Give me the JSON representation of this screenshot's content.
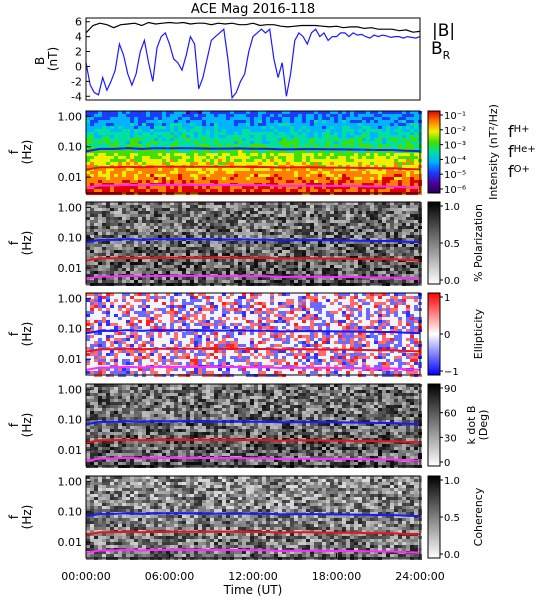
{
  "title": "ACE Mag 2016-118",
  "colors": {
    "total": "#000000",
    "radial": "#1a1aff",
    "hplus": "#1a1aff",
    "heplus": "#e8141e",
    "oplus": "#ff2bff"
  },
  "chart_data": [
    {
      "type": "line",
      "ylabel_line1": "B",
      "ylabel_line2": "(nT)",
      "ylim": [
        -4.5,
        6.5
      ],
      "yticks": [
        -4,
        -2,
        0,
        2,
        4,
        6
      ],
      "xlim": [
        0,
        24
      ],
      "legend": [
        {
          "name": "|B|",
          "color": "#000000"
        },
        {
          "name": "B",
          "sub": "R",
          "color": "#1a1aff"
        }
      ],
      "series": [
        {
          "name": "|B|",
          "x": [
            0,
            0.5,
            1,
            1.5,
            2,
            2.5,
            3,
            3.5,
            4,
            4.5,
            5,
            5.5,
            6,
            6.5,
            7,
            7.5,
            8,
            8.5,
            9,
            9.5,
            10,
            10.5,
            11,
            11.5,
            12,
            12.5,
            13,
            13.5,
            14,
            14.5,
            15,
            15.5,
            16,
            16.5,
            17,
            17.5,
            18,
            18.5,
            19,
            19.5,
            20,
            20.5,
            21,
            21.5,
            22,
            22.5,
            23,
            23.5,
            24
          ],
          "values": [
            4.5,
            5.5,
            5.8,
            5.6,
            5.2,
            5.6,
            5.7,
            5.8,
            5.5,
            5.9,
            5.7,
            5.8,
            5.9,
            5.8,
            5.9,
            5.7,
            5.8,
            5.8,
            5.6,
            5.8,
            5.7,
            5.8,
            5.6,
            5.6,
            5.8,
            5.5,
            5.6,
            5.6,
            5.4,
            5.3,
            5.4,
            5.5,
            5.5,
            5.5,
            5.4,
            5.3,
            5.4,
            5.2,
            5.3,
            5.3,
            5.1,
            5.2,
            5.0,
            5.0,
            5.0,
            4.8,
            4.9,
            4.6,
            4.7
          ]
        },
        {
          "name": "BR",
          "x": [
            0,
            0.3,
            0.6,
            0.9,
            1.2,
            1.5,
            1.8,
            2.1,
            2.4,
            2.7,
            3,
            3.3,
            3.6,
            3.9,
            4.2,
            4.5,
            4.8,
            5.1,
            5.4,
            5.7,
            6,
            6.3,
            6.6,
            6.9,
            7.2,
            7.5,
            7.8,
            8.1,
            8.4,
            8.7,
            9,
            9.3,
            9.6,
            9.9,
            10.2,
            10.5,
            10.8,
            11.1,
            11.4,
            11.7,
            12,
            12.3,
            12.6,
            12.9,
            13.2,
            13.5,
            13.8,
            14.1,
            14.4,
            14.7,
            15,
            15.3,
            15.6,
            15.9,
            16.2,
            16.5,
            16.8,
            17.1,
            17.4,
            17.7,
            18,
            18.3,
            18.6,
            18.9,
            19.2,
            19.5,
            19.8,
            20.1,
            20.4,
            20.7,
            21,
            21.3,
            21.6,
            21.9,
            22.2,
            22.5,
            22.8,
            23.1,
            23.4,
            23.7,
            24
          ],
          "values": [
            0.5,
            -2.5,
            -3.5,
            -3.8,
            -1.5,
            -3.2,
            -2.0,
            -0.5,
            3.0,
            1.5,
            -1.0,
            -2.5,
            -1.0,
            2.0,
            3.5,
            0.5,
            -2.0,
            2.5,
            4.0,
            4.5,
            3.0,
            1.0,
            0.5,
            -0.5,
            1.5,
            4.0,
            3.0,
            -3.0,
            -1.5,
            1.0,
            3.5,
            4.0,
            4.5,
            5.0,
            1.0,
            -4.2,
            -3.5,
            -2.0,
            -1.0,
            2.0,
            4.0,
            4.5,
            5.0,
            4.5,
            5.0,
            1.0,
            -1.5,
            0.5,
            -4.0,
            -1.0,
            3.5,
            4.5,
            4.0,
            3.0,
            4.5,
            5.0,
            4.0,
            4.5,
            3.5,
            4.0,
            4.0,
            4.5,
            4.5,
            4.0,
            4.5,
            4.2,
            4.3,
            4.0,
            3.8,
            4.2,
            4.0,
            4.2,
            4.1,
            3.9,
            4.0,
            4.0,
            3.8,
            4.0,
            3.9,
            3.8,
            4.0
          ]
        }
      ]
    },
    {
      "type": "heatmap",
      "ylabel_line1": "f",
      "ylabel_line2": "(Hz)",
      "yscale": "log",
      "ylim": [
        0.003,
        1.5
      ],
      "yticks": [
        "1.00",
        "0.10",
        "0.01"
      ],
      "colorbar": {
        "label": "Intensity (nT²/Hz)",
        "ticks": [
          "10⁻¹",
          "10⁻²",
          "10⁻³",
          "10⁻⁴",
          "10⁻⁵",
          "10⁻⁶"
        ],
        "scale": "rainbow"
      },
      "legend": [
        {
          "name": "f",
          "sub": "H+",
          "color": "#1a1aff"
        },
        {
          "name": "f",
          "sub": "He+",
          "color": "#e8141e"
        },
        {
          "name": "f",
          "sub": "O+",
          "color": "#ff2bff"
        }
      ]
    },
    {
      "type": "heatmap",
      "ylabel_line1": "f",
      "ylabel_line2": "(Hz)",
      "yscale": "log",
      "ylim": [
        0.003,
        1.5
      ],
      "yticks": [
        "1.00",
        "0.10",
        "0.01"
      ],
      "colorbar": {
        "label": "% Polarization",
        "ticks": [
          "1.0",
          "0.5",
          "0.0"
        ],
        "scale": "gray"
      }
    },
    {
      "type": "heatmap",
      "ylabel_line1": "f",
      "ylabel_line2": "(Hz)",
      "yscale": "log",
      "ylim": [
        0.003,
        1.5
      ],
      "yticks": [
        "1.00",
        "0.10",
        "0.01"
      ],
      "colorbar": {
        "label": "Ellipticity",
        "ticks": [
          "1",
          "0",
          "−1"
        ],
        "scale": "bwr"
      }
    },
    {
      "type": "heatmap",
      "ylabel_line1": "f",
      "ylabel_line2": "(Hz)",
      "yscale": "log",
      "ylim": [
        0.003,
        1.5
      ],
      "yticks": [
        "1.00",
        "0.10",
        "0.01"
      ],
      "colorbar": {
        "label": "k dot B",
        "label2": "(Deg)",
        "ticks": [
          "90",
          "60",
          "30",
          "0"
        ],
        "scale": "gray"
      }
    },
    {
      "type": "heatmap",
      "ylabel_line1": "f",
      "ylabel_line2": "(Hz)",
      "yscale": "log",
      "ylim": [
        0.003,
        1.5
      ],
      "yticks": [
        "1.00",
        "0.10",
        "0.01"
      ],
      "colorbar": {
        "label": "Coherency",
        "ticks": [
          "1.0",
          "0.5",
          "0.0"
        ],
        "scale": "gray"
      }
    }
  ],
  "gyrofrequency": {
    "x": [
      0,
      1,
      2,
      3,
      4,
      5,
      6,
      7,
      8,
      9,
      10,
      11,
      12,
      13,
      14,
      15,
      16,
      17,
      18,
      19,
      20,
      21,
      22,
      23,
      24
    ],
    "fH": [
      0.07,
      0.085,
      0.085,
      0.09,
      0.085,
      0.09,
      0.088,
      0.09,
      0.088,
      0.087,
      0.087,
      0.088,
      0.086,
      0.086,
      0.082,
      0.083,
      0.084,
      0.083,
      0.082,
      0.081,
      0.08,
      0.078,
      0.078,
      0.074,
      0.072
    ],
    "fHe": [
      0.0175,
      0.021,
      0.021,
      0.022,
      0.021,
      0.022,
      0.022,
      0.022,
      0.022,
      0.022,
      0.022,
      0.022,
      0.0215,
      0.0215,
      0.0205,
      0.021,
      0.021,
      0.0208,
      0.0205,
      0.0203,
      0.02,
      0.0195,
      0.0195,
      0.0185,
      0.018
    ],
    "fO": [
      0.0044,
      0.0053,
      0.0053,
      0.0056,
      0.0053,
      0.0056,
      0.0055,
      0.0056,
      0.0055,
      0.0055,
      0.0055,
      0.0055,
      0.0054,
      0.0054,
      0.0051,
      0.0052,
      0.0052,
      0.0052,
      0.0051,
      0.0051,
      0.005,
      0.0049,
      0.0049,
      0.0046,
      0.0045
    ]
  },
  "x_axis": {
    "label": "Time (UT)",
    "ticks": [
      "00:00:00",
      "06:00:00",
      "12:00:00",
      "18:00:00",
      "24:00:00"
    ],
    "xlim": [
      0,
      24
    ]
  }
}
